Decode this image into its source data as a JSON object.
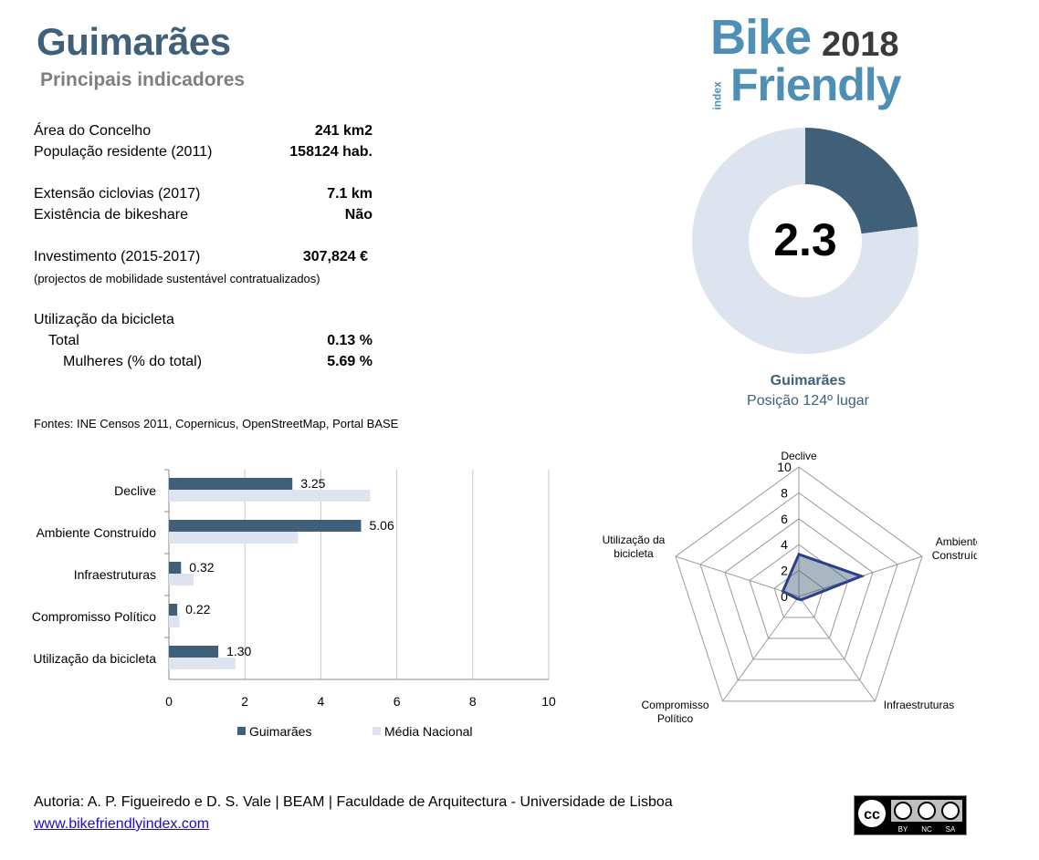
{
  "header": {
    "title": "Guimarães",
    "subtitle": "Principais indicadores"
  },
  "logo": {
    "word1": "Bike",
    "year": "2018",
    "word2": "Friendly",
    "index": "index"
  },
  "indicators": [
    {
      "label": "Área do Concelho",
      "value": "241 km2"
    },
    {
      "label": "População residente (2011)",
      "value": "158124 hab."
    },
    {
      "label": "Extensão ciclovias (2017)",
      "value": "7.1 km"
    },
    {
      "label": "Existência de bikeshare",
      "value": "Não"
    },
    {
      "label": "Investimento (2015-2017)",
      "value": "307,824 €"
    },
    {
      "label": "(projectos de mobilidade sustentável contratualizados)",
      "value": ""
    },
    {
      "label": "Utilização da bicicleta",
      "value": ""
    },
    {
      "label": "Total",
      "value": "0.13 %"
    },
    {
      "label": "Mulheres (% do total)",
      "value": "5.69 %"
    }
  ],
  "sources": "Fontes: INE Censos 2011, Copernicus, OpenStreetMap,  Portal BASE",
  "ranking": {
    "name": "Guimarães",
    "position": "Posição 124º lugar"
  },
  "colors": {
    "primary": "#3f6078",
    "secondary": "#dde3ef",
    "grid": "#c8c8c8",
    "link": "#1a0dcc"
  },
  "chart_data": [
    {
      "type": "pie",
      "variant": "donut",
      "center_label": "2.3",
      "values": [
        2.3,
        7.7
      ],
      "max": 10
    },
    {
      "type": "bar",
      "orientation": "horizontal",
      "categories": [
        "Declive",
        "Ambiente Construído",
        "Infraestruturas",
        "Compromisso Político",
        "Utilização da bicicleta"
      ],
      "series": [
        {
          "name": "Guimarães",
          "values": [
            3.25,
            5.06,
            0.32,
            0.22,
            1.3
          ],
          "labels": [
            "3.25",
            "5.06",
            "0.32",
            "0.22",
            "1.30"
          ]
        },
        {
          "name": "Média Nacional",
          "values": [
            5.3,
            3.4,
            0.65,
            0.28,
            1.75
          ]
        }
      ],
      "xlim": [
        0,
        10
      ],
      "xticks": [
        "0",
        "2",
        "4",
        "6",
        "8",
        "10"
      ],
      "grid": true,
      "legend": "bottom"
    },
    {
      "type": "radar",
      "axes": [
        "Declive",
        "Ambiente Construído",
        "Infraestruturas",
        "Compromisso Político",
        "Utilização da bicicleta"
      ],
      "axis_labels": [
        "Declive",
        "Ambiente\nConstruído",
        "Infraestruturas",
        "Compromisso\nPolítico",
        "Utilização da\nbicicleta"
      ],
      "series": [
        {
          "name": "Guimarães",
          "values": [
            3.25,
            5.06,
            0.32,
            0.22,
            1.3
          ]
        }
      ],
      "rlim": [
        0,
        10
      ],
      "rticks": [
        "0",
        "2",
        "4",
        "6",
        "8",
        "10"
      ]
    }
  ],
  "footer": {
    "author": "Autoria: A. P. Figueiredo e D. S. Vale | BEAM | Faculdade de Arquitectura - Universidade de Lisboa",
    "link": "www.bikefriendlyindex.com"
  },
  "license": {
    "terms": [
      "BY",
      "NC",
      "SA"
    ]
  }
}
